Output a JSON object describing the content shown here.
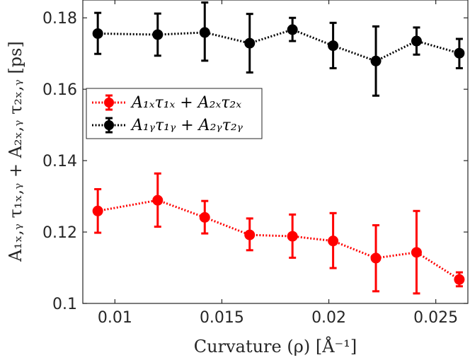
{
  "chart_data": {
    "type": "line",
    "title": "",
    "xlabel": "Curvature (ρ) [Å⁻¹]",
    "ylabel": "A₁ₓ,ᵧ τ₁ₓ,ᵧ + A₂ₓ,ᵧ τ₂ₓ,ᵧ [ps]",
    "xlim": [
      0.0085,
      0.0265
    ],
    "ylim": [
      0.1,
      0.185
    ],
    "xticks": [
      0.01,
      0.015,
      0.02,
      0.025
    ],
    "xtick_labels": [
      "0.01",
      "0.015",
      "0.02",
      "0.025"
    ],
    "yticks": [
      0.1,
      0.12,
      0.14,
      0.16,
      0.18
    ],
    "ytick_labels": [
      "0.1",
      "0.12",
      "0.14",
      "0.16",
      "0.18"
    ],
    "grid": false,
    "legend_position": "middle-left",
    "x": [
      0.0092,
      0.012,
      0.0142,
      0.0163,
      0.0183,
      0.0202,
      0.0222,
      0.0241,
      0.0261
    ],
    "series": [
      {
        "name": "A₁ₓτ₁ₓ + A₂ₓτ₂ₓ",
        "color": "#ff0000",
        "values": [
          0.1259,
          0.1289,
          0.1241,
          0.1192,
          0.1188,
          0.1175,
          0.1127,
          0.1143,
          0.1067
        ],
        "err_low": [
          0.1198,
          0.1215,
          0.1196,
          0.1149,
          0.1128,
          0.1099,
          0.1034,
          0.1028,
          0.1048
        ],
        "err_high": [
          0.132,
          0.1364,
          0.1287,
          0.1238,
          0.1249,
          0.1253,
          0.1219,
          0.1259,
          0.1087
        ]
      },
      {
        "name": "A₁ᵧτ₁ᵧ + A₂ᵧτ₂ᵧ",
        "color": "#000000",
        "values": [
          0.1756,
          0.1753,
          0.1759,
          0.1729,
          0.1767,
          0.1722,
          0.1679,
          0.1735,
          0.1701
        ],
        "err_low": [
          0.1699,
          0.1694,
          0.168,
          0.1647,
          0.1735,
          0.1659,
          0.1582,
          0.1697,
          0.1659
        ],
        "err_high": [
          0.1814,
          0.1812,
          0.1843,
          0.1811,
          0.18,
          0.1786,
          0.1776,
          0.1773,
          0.1741
        ]
      }
    ]
  }
}
